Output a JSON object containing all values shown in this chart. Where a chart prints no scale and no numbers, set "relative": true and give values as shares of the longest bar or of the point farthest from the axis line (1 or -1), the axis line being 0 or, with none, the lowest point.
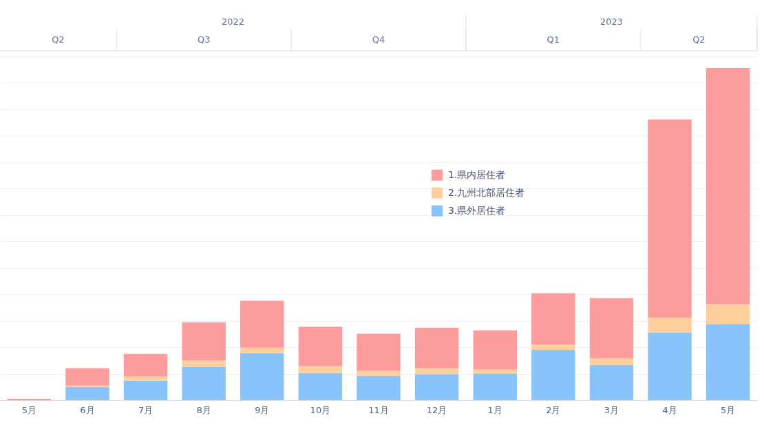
{
  "chart_data": {
    "type": "bar",
    "stacked": true,
    "relative": true,
    "grid": "y",
    "legend": "center",
    "categories": [
      "5月",
      "6月",
      "7月",
      "8月",
      "9月",
      "10月",
      "11月",
      "12月",
      "1月",
      "2月",
      "3月",
      "4月",
      "5月"
    ],
    "series": [
      {
        "name": "3.県外居住者",
        "color": "#89c3fc",
        "values": [
          0,
          0.04,
          0.059,
          0.1,
          0.141,
          0.082,
          0.073,
          0.078,
          0.08,
          0.151,
          0.106,
          0.203,
          0.229
        ]
      },
      {
        "name": "2.九州北部居住者",
        "color": "#ffd09b",
        "values": [
          0,
          0.004,
          0.012,
          0.019,
          0.017,
          0.02,
          0.015,
          0.018,
          0.012,
          0.016,
          0.019,
          0.045,
          0.06
        ]
      },
      {
        "name": "1.県内居住者",
        "color": "#fd9c9c",
        "values": [
          0.004,
          0.052,
          0.068,
          0.115,
          0.141,
          0.119,
          0.112,
          0.122,
          0.118,
          0.155,
          0.182,
          0.597,
          0.711
        ]
      }
    ],
    "annotations": [
      "2022",
      "2023",
      "Q2",
      "Q3",
      "Q4",
      "Q1",
      "Q2"
    ]
  }
}
